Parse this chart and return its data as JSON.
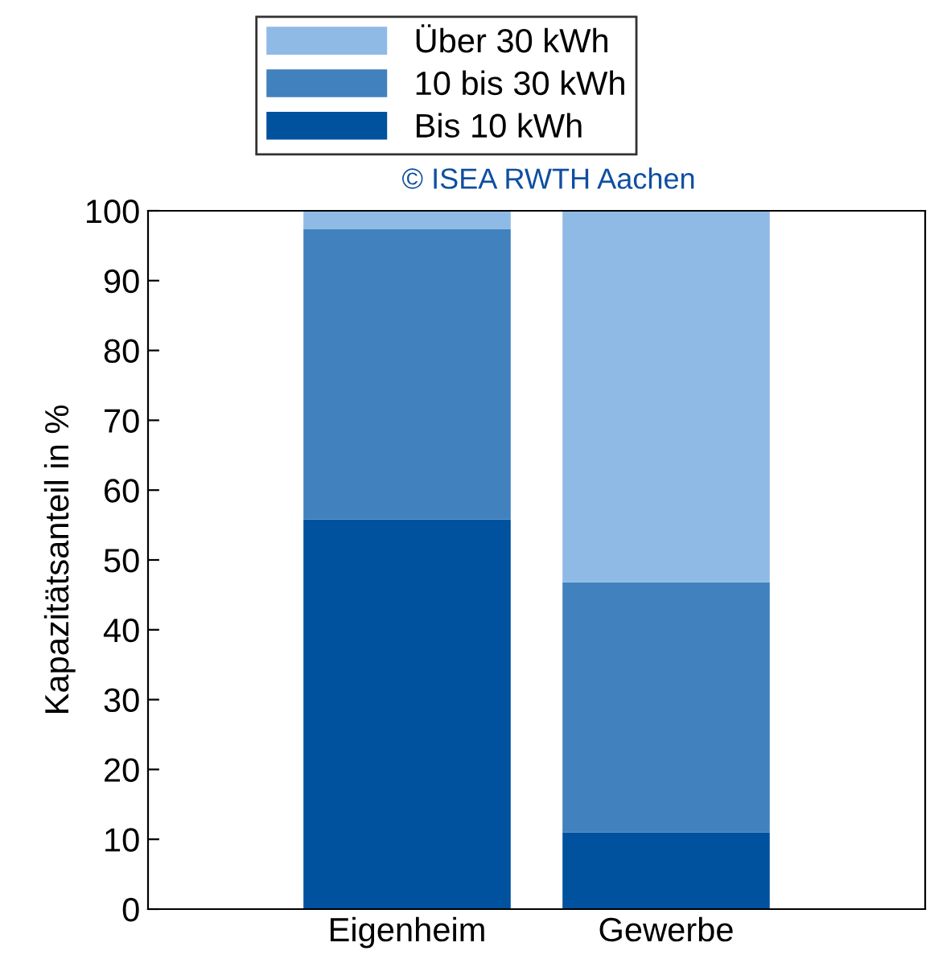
{
  "chart_data": {
    "type": "bar",
    "stacked": true,
    "ylabel": "Kapazitätsanteil in %",
    "categories": [
      "Eigenheim",
      "Gewerbe"
    ],
    "series": [
      {
        "name": "Bis 10 kWh",
        "color": "#00519e",
        "values": [
          55.8,
          11
        ]
      },
      {
        "name": "10 bis 30 kWh",
        "color": "#4181bd",
        "values": [
          41.6,
          35.8
        ]
      },
      {
        "name": "Über 30 kWh",
        "color": "#8fbae6",
        "values": [
          2.6,
          53.2
        ]
      }
    ],
    "ylim": [
      0,
      100
    ],
    "yticks": [
      0,
      10,
      20,
      30,
      40,
      50,
      60,
      70,
      80,
      90,
      100
    ],
    "legend": "top",
    "grid": false,
    "annotations": [
      "© ISEA RWTH Aachen"
    ]
  }
}
